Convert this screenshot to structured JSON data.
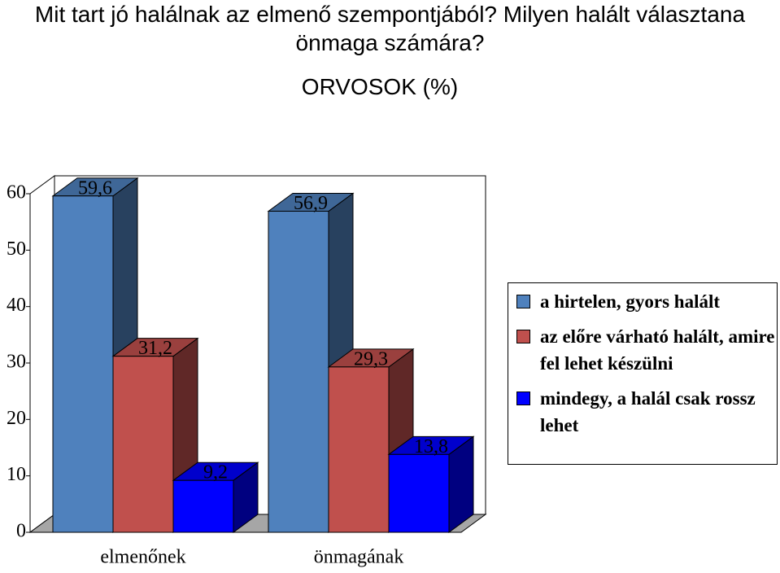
{
  "chart_data": {
    "type": "bar3d",
    "title": "Mit tart jó halálnak az elmenő szempontjából? Milyen halált választana önmaga számára?",
    "subtitle": "ORVOSOK (%)",
    "categories": [
      "elmenőnek",
      "önmagának"
    ],
    "series": [
      {
        "name": "a hirtelen, gyors halált",
        "color": "#4f81bd",
        "values": [
          59.6,
          56.9
        ],
        "value_labels": [
          "59,6",
          "56,9"
        ]
      },
      {
        "name": "az előre várható halált, amire fel lehet készülni",
        "color": "#c0504d",
        "values": [
          31.2,
          29.3
        ],
        "value_labels": [
          "31,2",
          "29,3"
        ]
      },
      {
        "name": "mindegy, a halál csak rossz lehet",
        "color": "#0000ff",
        "values": [
          9.2,
          13.8
        ],
        "value_labels": [
          "9,2",
          "13,8"
        ]
      }
    ],
    "ylim": [
      0,
      60
    ],
    "yticks": [
      0,
      10,
      20,
      30,
      40,
      50,
      60
    ],
    "grid": false,
    "legend": "right"
  }
}
